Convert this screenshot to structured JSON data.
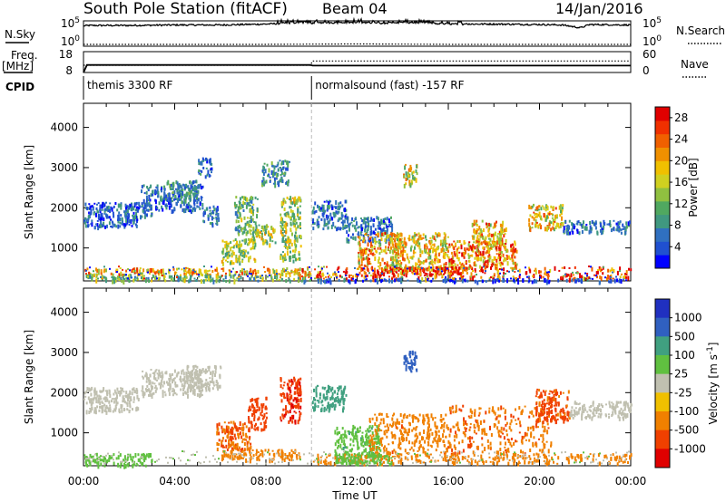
{
  "header": {
    "title": "South Pole Station (fitACF)",
    "beam": "Beam 04",
    "date": "14/Jan/2016"
  },
  "labels": {
    "nsky": "N.Sky",
    "nsearch": "N.Search",
    "freq_line1": "Freq.",
    "freq_line2": "[MHz]",
    "nave": "Nave",
    "cpid": "CPID",
    "xlabel": "Time UT"
  },
  "chart_data": [
    {
      "type": "line",
      "panel": "noise",
      "left_ticks": [
        "10^5",
        "10^0"
      ],
      "right_ticks": [
        "10^5",
        "10^0"
      ],
      "y_scale": "log",
      "series": [
        {
          "name": "N.Sky",
          "style": "solid",
          "x_hours": [
            0,
            0.2,
            2,
            4,
            6,
            8,
            9,
            9.5,
            10,
            11,
            12,
            13,
            14,
            15,
            16,
            18,
            20,
            21,
            21.8,
            22.2,
            24
          ],
          "log10_values": [
            4.4,
            4.5,
            4.5,
            4.6,
            4.6,
            4.8,
            5.0,
            5.2,
            5.0,
            5.1,
            5.2,
            5.0,
            5.1,
            5.0,
            4.8,
            4.8,
            4.7,
            4.6,
            4.0,
            4.7,
            4.6
          ]
        },
        {
          "name": "N.Search",
          "style": "dotted",
          "x_hours": [
            0,
            4,
            8,
            12,
            16,
            20,
            24
          ],
          "log10_values": [
            0.4,
            0.4,
            0.4,
            0.5,
            0.4,
            0.4,
            0.4
          ]
        }
      ]
    },
    {
      "type": "line",
      "panel": "frequency",
      "left_ticks": [
        "18",
        "8"
      ],
      "right_ticks": [
        "60",
        "0"
      ],
      "ylim_left": [
        8,
        18
      ],
      "ylim_right": [
        0,
        60
      ],
      "series": [
        {
          "name": "Freq.",
          "style": "solid",
          "x_hours": [
            0,
            0.15,
            9.95,
            10.05,
            24
          ],
          "values": [
            8,
            11.6,
            11.6,
            11.3,
            11.3
          ]
        },
        {
          "name": "Nave",
          "style": "dotted",
          "x_hours": [
            0,
            9.95,
            10.05,
            24
          ],
          "values": [
            21,
            21,
            33,
            33
          ]
        }
      ]
    },
    {
      "type": "table",
      "panel": "cpid",
      "segments": [
        {
          "start_hour": 0,
          "end_hour": 10,
          "label": "themis 3300 RF"
        },
        {
          "start_hour": 10,
          "end_hour": 24,
          "label": "normalsound (fast) -157 RF"
        }
      ]
    },
    {
      "type": "heatmap",
      "panel": "power",
      "ylabel": "Slant Range [km]",
      "xlim": [
        0,
        24
      ],
      "ylim": [
        180,
        4600
      ],
      "x_ticks": [
        "00:00",
        "04:00",
        "08:00",
        "12:00",
        "16:00",
        "20:00",
        "00:00"
      ],
      "x_tick_hours": [
        0,
        4,
        8,
        12,
        16,
        20,
        24
      ],
      "y_ticks": [
        1000,
        2000,
        3000,
        4000
      ],
      "colorbar": {
        "label": "Power [dB]",
        "ticks": [
          "28",
          "24",
          "20",
          "16",
          "12",
          "8",
          "4"
        ],
        "range": [
          0,
          30
        ],
        "colors": [
          "#0000ff",
          "#2050d0",
          "#3070c0",
          "#409880",
          "#50a860",
          "#90c040",
          "#d0d020",
          "#f0c000",
          "#f09000",
          "#f06000",
          "#f03000",
          "#e00000"
        ]
      },
      "regions": [
        {
          "t": [
            0.0,
            2.4
          ],
          "r": [
            1550,
            2150
          ],
          "value": 5
        },
        {
          "t": [
            1.8,
            3.0
          ],
          "r": [
            1800,
            2150
          ],
          "value": 6
        },
        {
          "t": [
            2.5,
            5.2
          ],
          "r": [
            1950,
            2600
          ],
          "value": 6
        },
        {
          "t": [
            3.5,
            5.0
          ],
          "r": [
            2200,
            2700
          ],
          "value": 8
        },
        {
          "t": [
            5.0,
            5.6
          ],
          "r": [
            2800,
            3300
          ],
          "value": 6
        },
        {
          "t": [
            5.2,
            5.9
          ],
          "r": [
            1600,
            2100
          ],
          "value": 6
        },
        {
          "t": [
            6.0,
            7.5
          ],
          "r": [
            650,
            1250
          ],
          "value": 14
        },
        {
          "t": [
            6.6,
            7.6
          ],
          "r": [
            1400,
            2300
          ],
          "value": 12
        },
        {
          "t": [
            7.3,
            8.4
          ],
          "r": [
            1100,
            1600
          ],
          "value": 15
        },
        {
          "t": [
            7.8,
            9.0
          ],
          "r": [
            2600,
            3200
          ],
          "value": 8
        },
        {
          "t": [
            8.6,
            9.5
          ],
          "r": [
            700,
            2300
          ],
          "value": 14
        },
        {
          "t": [
            0.0,
            10.0
          ],
          "r": [
            350,
            520
          ],
          "value": 20
        },
        {
          "t": [
            0.0,
            10.0
          ],
          "r": [
            200,
            350
          ],
          "value": 12
        },
        {
          "t": [
            10.0,
            11.5
          ],
          "r": [
            1500,
            2200
          ],
          "value": 6
        },
        {
          "t": [
            11.5,
            13.5
          ],
          "r": [
            1200,
            1800
          ],
          "value": 6
        },
        {
          "t": [
            12.0,
            14.0
          ],
          "r": [
            500,
            1400
          ],
          "value": 20
        },
        {
          "t": [
            14.0,
            14.6
          ],
          "r": [
            2550,
            3100
          ],
          "value": 16
        },
        {
          "t": [
            13.5,
            16.0
          ],
          "r": [
            500,
            1400
          ],
          "value": 18
        },
        {
          "t": [
            16.0,
            19.0
          ],
          "r": [
            500,
            1200
          ],
          "value": 22
        },
        {
          "t": [
            17.0,
            18.5
          ],
          "r": [
            1000,
            1700
          ],
          "value": 20
        },
        {
          "t": [
            19.5,
            21.0
          ],
          "r": [
            1500,
            2100
          ],
          "value": 18
        },
        {
          "t": [
            21.0,
            24.0
          ],
          "r": [
            1400,
            1700
          ],
          "value": 6
        },
        {
          "t": [
            10.0,
            24.0
          ],
          "r": [
            250,
            550
          ],
          "value": 25
        },
        {
          "t": [
            13.0,
            16.5
          ],
          "r": [
            350,
            550
          ],
          "value": 28
        },
        {
          "t": [
            10.0,
            24.0
          ],
          "r": [
            180,
            260
          ],
          "value": 4
        }
      ]
    },
    {
      "type": "heatmap",
      "panel": "velocity",
      "ylabel": "Slant Range [km]",
      "xlim": [
        0,
        24
      ],
      "ylim": [
        180,
        4600
      ],
      "x_ticks": [
        "00:00",
        "04:00",
        "08:00",
        "12:00",
        "16:00",
        "20:00",
        "00:00"
      ],
      "x_tick_hours": [
        0,
        4,
        8,
        12,
        16,
        20,
        24
      ],
      "y_ticks": [
        1000,
        2000,
        3000,
        4000
      ],
      "colorbar": {
        "label": "Velocity [m s^-1]",
        "ticks": [
          "1000",
          "500",
          "100",
          "25",
          "-25",
          "-100",
          "-500",
          "-1000"
        ],
        "levels": [
          1000,
          500,
          100,
          25,
          -25,
          -100,
          -500,
          -1000
        ],
        "colors": [
          "#2030c0",
          "#3060c0",
          "#40a080",
          "#60c040",
          "#c0c0b0",
          "#f0c000",
          "#f08000",
          "#f04000",
          "#e00000"
        ]
      },
      "regions": [
        {
          "t": [
            0.0,
            2.4
          ],
          "r": [
            1550,
            2150
          ],
          "value": 0
        },
        {
          "t": [
            2.5,
            5.2
          ],
          "r": [
            1950,
            2600
          ],
          "value": 0
        },
        {
          "t": [
            4.5,
            6.0
          ],
          "r": [
            2100,
            2700
          ],
          "value": 10
        },
        {
          "t": [
            5.8,
            7.3
          ],
          "r": [
            600,
            1300
          ],
          "value": -500
        },
        {
          "t": [
            7.2,
            8.0
          ],
          "r": [
            1100,
            1900
          ],
          "value": -700
        },
        {
          "t": [
            8.6,
            9.5
          ],
          "r": [
            1300,
            2400
          ],
          "value": -900
        },
        {
          "t": [
            6.0,
            9.5
          ],
          "r": [
            350,
            600
          ],
          "value": -400
        },
        {
          "t": [
            0.0,
            3.0
          ],
          "r": [
            200,
            500
          ],
          "value": 60
        },
        {
          "t": [
            10.0,
            11.5
          ],
          "r": [
            1600,
            2200
          ],
          "value": 400
        },
        {
          "t": [
            11.0,
            13.0
          ],
          "r": [
            300,
            1200
          ],
          "value": 80
        },
        {
          "t": [
            12.5,
            16.0
          ],
          "r": [
            500,
            1500
          ],
          "value": -400
        },
        {
          "t": [
            14.0,
            14.6
          ],
          "r": [
            2550,
            3100
          ],
          "value": 700
        },
        {
          "t": [
            16.0,
            20.5
          ],
          "r": [
            500,
            1700
          ],
          "value": -450
        },
        {
          "t": [
            19.8,
            21.3
          ],
          "r": [
            1300,
            2100
          ],
          "value": -600
        },
        {
          "t": [
            21.3,
            24.0
          ],
          "r": [
            1400,
            1800
          ],
          "value": 0
        },
        {
          "t": [
            10.0,
            24.0
          ],
          "r": [
            250,
            500
          ],
          "value": -200
        },
        {
          "t": [
            11.0,
            13.5
          ],
          "r": [
            250,
            500
          ],
          "value": 60
        }
      ]
    }
  ]
}
